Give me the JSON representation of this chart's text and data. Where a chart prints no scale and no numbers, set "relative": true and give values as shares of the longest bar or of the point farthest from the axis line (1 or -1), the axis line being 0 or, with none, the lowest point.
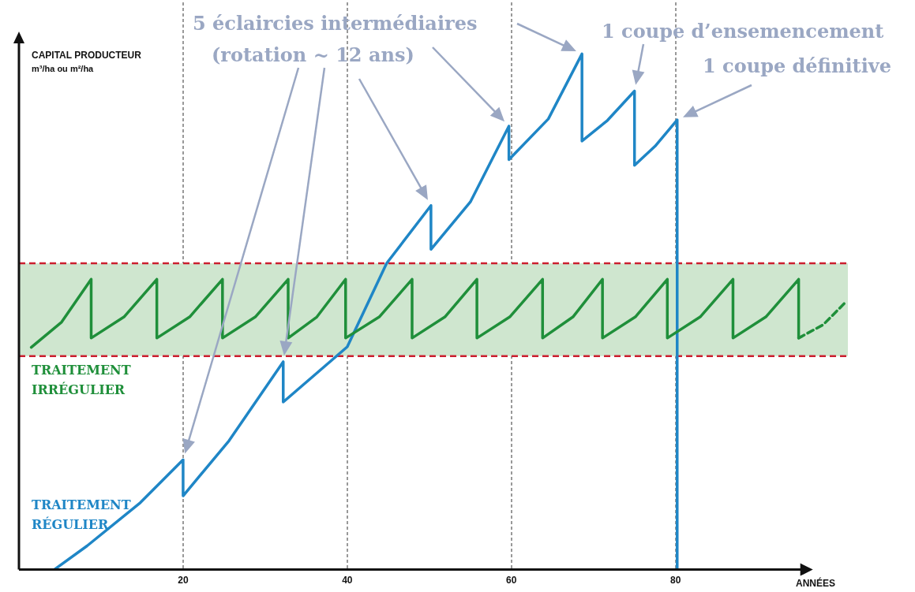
{
  "chart_data": {
    "type": "line",
    "relative": true,
    "xlabel": "ANNÉES",
    "ylabel": "CAPITAL PRODUCTEUR\nm³/ha ou m²/ha",
    "xlim": [
      0,
      101
    ],
    "xticks": [
      20,
      40,
      60,
      80
    ],
    "grid": "x",
    "legend": false,
    "marker": "none",
    "series": [
      {
        "name": "TRAITEMENT IRRÉGULIER",
        "color": "#1f8f3a",
        "x": [
          1.5,
          5.2,
          8.8,
          8.8,
          12.8,
          16.8,
          16.8,
          20.8,
          24.8,
          24.8,
          28.8,
          32.8,
          32.8,
          36.3,
          39.8,
          39.8,
          43.9,
          47.9,
          47.9,
          51.9,
          55.8,
          55.8,
          59.8,
          63.8,
          63.8,
          67.5,
          71.1,
          71.1,
          75.1,
          79.0,
          79.0,
          83.0,
          87.0,
          87.0,
          91.0,
          95.0,
          95.0
        ],
        "values": [
          0.431,
          0.48,
          0.563,
          0.449,
          0.49,
          0.563,
          0.449,
          0.49,
          0.563,
          0.449,
          0.49,
          0.563,
          0.449,
          0.49,
          0.563,
          0.449,
          0.49,
          0.563,
          0.449,
          0.49,
          0.563,
          0.449,
          0.49,
          0.563,
          0.449,
          0.49,
          0.563,
          0.449,
          0.49,
          0.563,
          0.449,
          0.49,
          0.563,
          0.449,
          0.49,
          0.563,
          0.449
        ]
      },
      {
        "name": "TRAITEMENT RÉGULIER",
        "color": "#1f86c6",
        "x": [
          4.3,
          8.3,
          14.8,
          20.0,
          20.0,
          25.6,
          32.2,
          32.2,
          40.0,
          44.8,
          50.2,
          50.2,
          55.0,
          59.7,
          59.7,
          64.5,
          68.6,
          68.6,
          71.7,
          75.0,
          75.0,
          77.5,
          80.2,
          80.2
        ],
        "values": [
          0,
          0.046,
          0.13,
          0.213,
          0.143,
          0.25,
          0.403,
          0.325,
          0.432,
          0.594,
          0.706,
          0.621,
          0.713,
          0.86,
          0.795,
          0.874,
          1.0,
          0.831,
          0.871,
          0.928,
          0.784,
          0.821,
          0.872,
          0
        ]
      },
      {
        "color": "#1f8f3a",
        "line_style": "dashed",
        "x": [
          95.0,
          98.0,
          100.8
        ],
        "values": [
          0.449,
          0.475,
          0.52
        ]
      }
    ],
    "bands": [
      {
        "axis": "y",
        "from": 0.414,
        "to": 0.594,
        "color": "#cfe6cf"
      }
    ],
    "ref_lines": [
      {
        "axis": "y",
        "value": 0.594,
        "color": "#cc1f2f",
        "line_style": "dashed"
      },
      {
        "axis": "y",
        "value": 0.414,
        "color": "#cc1f2f",
        "line_style": "dashed"
      }
    ],
    "annotations": [
      "5 éclaircies intermédiaires (rotation ~ 12 ans)",
      "1 coupe d’ensemencement",
      "1 coupe définitive"
    ]
  }
}
